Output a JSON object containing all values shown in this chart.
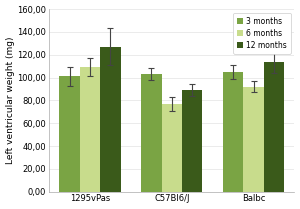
{
  "groups": [
    "1295vPas",
    "C57Bl6/J",
    "Balbc"
  ],
  "series": {
    "3 months": [
      101,
      103,
      105
    ],
    "6 months": [
      109,
      77,
      92
    ],
    "12 months": [
      127,
      89,
      114
    ]
  },
  "errors": {
    "3 months": [
      8,
      5,
      6
    ],
    "6 months": [
      8,
      6,
      5
    ],
    "12 months": [
      16,
      5,
      10
    ]
  },
  "colors": {
    "3 months": "#7aa444",
    "6 months": "#c8dc8c",
    "12 months": "#3a5a1a"
  },
  "ylabel": "Left ventricular weight (mg)",
  "ylim": [
    0,
    160
  ],
  "yticks": [
    0,
    20,
    40,
    60,
    80,
    100,
    120,
    140,
    160
  ],
  "ytick_labels": [
    "0,00",
    "20,00",
    "40,00",
    "60,00",
    "80,00",
    "100,00",
    "120,00",
    "140,00",
    "160,00"
  ],
  "legend_order": [
    "3 months",
    "6 months",
    "12 months"
  ],
  "bar_width": 0.25,
  "background_color": "#ffffff",
  "plot_bg_color": "#ffffff",
  "grid_color": "#e8e8e8",
  "font_size": 6.0,
  "legend_font_size": 5.5,
  "axis_label_size": 6.5
}
